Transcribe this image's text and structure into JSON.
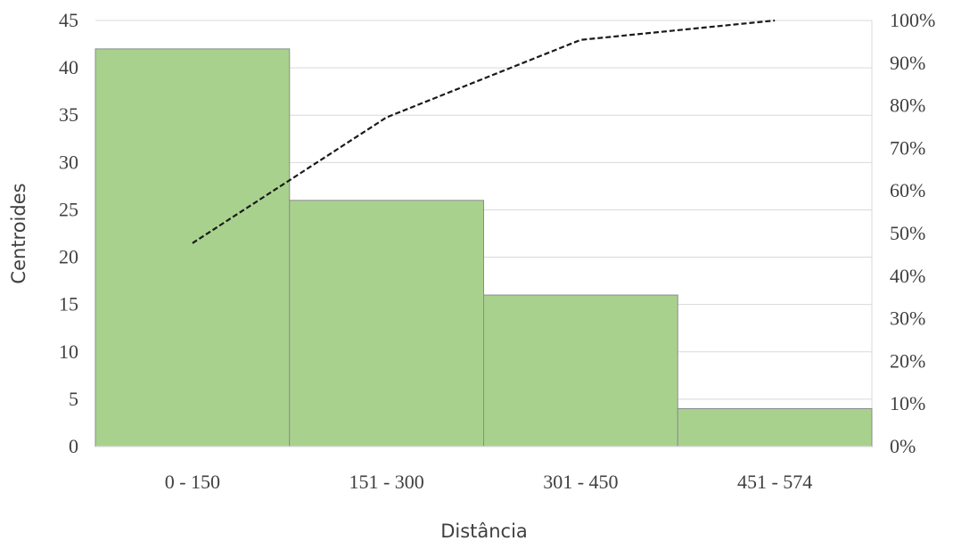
{
  "chart_data": {
    "type": "bar",
    "categories": [
      "0 - 150",
      "151 - 300",
      "301 - 450",
      "451 - 574"
    ],
    "series": [
      {
        "name": "",
        "values": [
          42,
          26,
          16,
          4
        ]
      }
    ],
    "line_series": {
      "name": "",
      "axis": "secondary",
      "style": "dashed",
      "values": [
        0.4773,
        0.7727,
        0.9545,
        1.0
      ]
    },
    "title": "",
    "xlabel": "Distância",
    "ylabel": "Centroides",
    "ylim": [
      0,
      45
    ],
    "y_ticks": [
      "0",
      "5",
      "10",
      "15",
      "20",
      "25",
      "30",
      "35",
      "40",
      "45"
    ],
    "y2lim": [
      0,
      1
    ],
    "y2_ticks": [
      "0%",
      "10%",
      "20%",
      "30%",
      "40%",
      "50%",
      "60%",
      "70%",
      "80%",
      "90%",
      "100%"
    ],
    "grid": true,
    "legend": "none",
    "colors": {
      "bar_fill": "#a9d18e",
      "bar_stroke": "#8c8c8c",
      "line": "#1a1a1a",
      "grid": "#d9d9d9",
      "text": "#404040"
    }
  }
}
